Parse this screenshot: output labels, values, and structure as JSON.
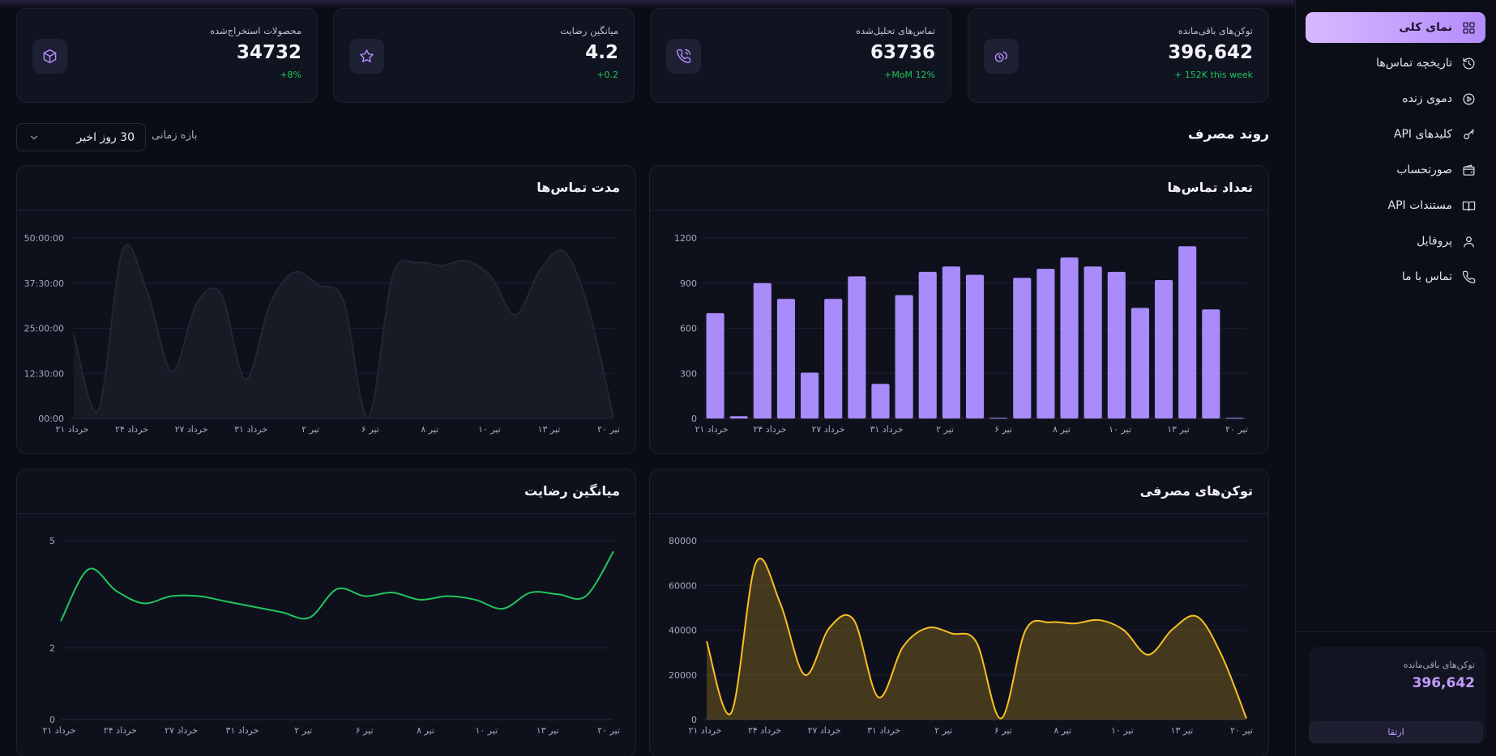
{
  "sidebar": {
    "items": [
      {
        "label": "نمای کلی",
        "icon": "grid-icon",
        "active": true
      },
      {
        "label": "تاریخچه تماس‌ها",
        "icon": "history-icon",
        "active": false
      },
      {
        "label": "دموی زنده",
        "icon": "play-circle-icon",
        "active": false
      },
      {
        "label": "کلیدهای API",
        "icon": "key-icon",
        "active": false
      },
      {
        "label": "صورتحساب",
        "icon": "wallet-icon",
        "active": false
      },
      {
        "label": "مستندات API",
        "icon": "book-icon",
        "active": false
      },
      {
        "label": "پروفایل",
        "icon": "user-icon",
        "active": false
      },
      {
        "label": "تماس با ما",
        "icon": "phone-icon",
        "active": false
      }
    ],
    "token_card": {
      "label": "توکن‌های باقی‌مانده",
      "value": "396,642"
    },
    "upgrade_label": "ارتقا"
  },
  "stats": [
    {
      "title": "توکن‌های باقی‌مانده",
      "value": "396,642",
      "delta": "152K this week +",
      "icon": "coins-icon"
    },
    {
      "title": "تماس‌های تحلیل‌شده",
      "value": "63736",
      "delta": "MoM 12%+",
      "icon": "phone-call-icon"
    },
    {
      "title": "میانگین رضایت",
      "value": "4.2",
      "delta": "0.2+",
      "icon": "star-icon"
    },
    {
      "title": "محصولات استخراج‌شده",
      "value": "34732",
      "delta": "8%+",
      "icon": "package-icon"
    }
  ],
  "section": {
    "title": "روند مصرف",
    "range_label": "بازه زمانی",
    "range_value": "30 روز اخیر"
  },
  "colors": {
    "accent": "#b48cfb",
    "bar": "#a98bfa",
    "green": "#22c55e",
    "amber": "#fbbf24"
  },
  "chart_data": [
    {
      "id": "calls",
      "type": "bar",
      "title": "تعداد تماس‌ها",
      "ylim": [
        0,
        1200
      ],
      "yticks": [
        "0",
        "300",
        "600",
        "900",
        "1200"
      ],
      "xticks": [
        "۲۱ خرداد",
        "۲۴ خرداد",
        "۲۷ خرداد",
        "۳۱ خرداد",
        "۲ تیر",
        "۶ تیر",
        "۸ تیر",
        "۱۰ تیر",
        "۱۳ تیر",
        "۲۰ تیر"
      ],
      "values": [
        700,
        15,
        900,
        795,
        305,
        795,
        945,
        230,
        820,
        975,
        1010,
        955,
        5,
        935,
        995,
        1070,
        1010,
        975,
        735,
        920,
        1145,
        725,
        5
      ]
    },
    {
      "id": "duration",
      "type": "area",
      "title": "مدت تماس‌ها",
      "ylim": [
        0,
        3000
      ],
      "yticks": [
        "00:00",
        "12:30:00",
        "25:00:00",
        "37:30:00",
        "50:00:00"
      ],
      "xticks": [
        "۲۱ خرداد",
        "۲۴ خرداد",
        "۲۷ خرداد",
        "۳۱ خرداد",
        "۲ تیر",
        "۶ تیر",
        "۸ تیر",
        "۱۰ تیر",
        "۱۳ تیر",
        "۲۰ تیر"
      ],
      "values": [
        1400,
        140,
        2800,
        2100,
        780,
        1900,
        2070,
        650,
        1900,
        2430,
        2210,
        1950,
        10,
        2370,
        2590,
        2540,
        2620,
        2360,
        1720,
        2460,
        2770,
        1800,
        10
      ]
    },
    {
      "id": "tokens",
      "type": "area",
      "title": "توکن‌های مصرفی",
      "ylim": [
        0,
        80000
      ],
      "yticks": [
        "0",
        "20000",
        "40000",
        "60000",
        "80000"
      ],
      "xticks": [
        "۲۱ خرداد",
        "۲۴ خرداد",
        "۲۷ خرداد",
        "۳۱ خرداد",
        "۲ تیر",
        "۶ تیر",
        "۸ تیر",
        "۱۰ تیر",
        "۱۳ تیر",
        "۲۰ تیر"
      ],
      "values": [
        35000,
        3000,
        70000,
        52000,
        20000,
        41000,
        44500,
        10000,
        32500,
        41000,
        38500,
        34500,
        500,
        40000,
        43500,
        43000,
        44500,
        40000,
        29000,
        40500,
        46000,
        28500,
        500
      ]
    },
    {
      "id": "satisfaction",
      "type": "line",
      "title": "میانگین رضایت",
      "ylim": [
        0,
        5
      ],
      "yticks": [
        "0",
        "2",
        "5"
      ],
      "ytick_values": [
        0,
        2,
        5
      ],
      "xticks": [
        "۲۱ خرداد",
        "۲۴ خرداد",
        "۲۷ خرداد",
        "۳۱ خرداد",
        "۲ تیر",
        "۶ تیر",
        "۸ تیر",
        "۱۰ تیر",
        "۱۳ تیر",
        "۲۰ تیر"
      ],
      "values": [
        2.75,
        4.2,
        3.6,
        3.25,
        3.45,
        3.45,
        3.3,
        3.15,
        3.0,
        2.85,
        3.65,
        3.45,
        3.55,
        3.35,
        3.45,
        3.35,
        3.1,
        3.55,
        3.5,
        3.45,
        4.7
      ]
    }
  ]
}
